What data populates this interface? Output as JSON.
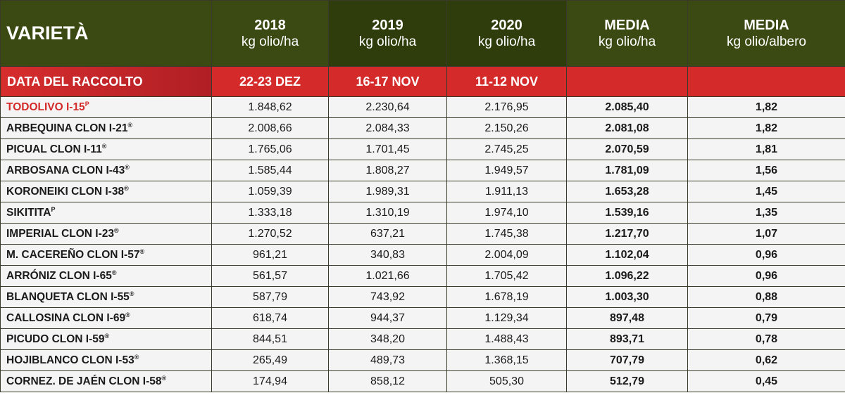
{
  "header": {
    "variety_label": "VARIETÀ",
    "columns": [
      {
        "year": "2018",
        "unit": "kg olio/ha"
      },
      {
        "year": "2019",
        "unit": "kg olio/ha"
      },
      {
        "year": "2020",
        "unit": "kg olio/ha"
      },
      {
        "year": "MEDIA",
        "unit": "kg olio/ha"
      },
      {
        "year": "MEDIA",
        "unit": "kg olio/albero"
      }
    ]
  },
  "harvest": {
    "label": "DATA DEL RACCOLTO",
    "dates": [
      "22-23 DEZ",
      "16-17 NOV",
      "11-12 NOV",
      "",
      ""
    ]
  },
  "rows": [
    {
      "name": "TODOLIVO I-15",
      "mark": "P",
      "highlight": true,
      "values": [
        "1.848,62",
        "2.230,64",
        "2.176,95",
        "2.085,40",
        "1,82"
      ]
    },
    {
      "name": "ARBEQUINA CLON I-21",
      "mark": "®",
      "values": [
        "2.008,66",
        "2.084,33",
        "2.150,26",
        "2.081,08",
        "1,82"
      ]
    },
    {
      "name": "PICUAL CLON I-11",
      "mark": "®",
      "values": [
        "1.765,06",
        "1.701,45",
        "2.745,25",
        "2.070,59",
        "1,81"
      ]
    },
    {
      "name": "ARBOSANA CLON I-43",
      "mark": "®",
      "values": [
        "1.585,44",
        "1.808,27",
        "1.949,57",
        "1.781,09",
        "1,56"
      ]
    },
    {
      "name": "KORONEIKI CLON I-38",
      "mark": "®",
      "values": [
        "1.059,39",
        "1.989,31",
        "1.911,13",
        "1.653,28",
        "1,45"
      ]
    },
    {
      "name": "SIKITITA",
      "mark": "P",
      "values": [
        "1.333,18",
        "1.310,19",
        "1.974,10",
        "1.539,16",
        "1,35"
      ]
    },
    {
      "name": "IMPERIAL CLON I-23",
      "mark": "®",
      "values": [
        "1.270,52",
        "637,21",
        "1.745,38",
        "1.217,70",
        "1,07"
      ]
    },
    {
      "name": "M. CACEREÑO CLON I-57",
      "mark": "®",
      "values": [
        "961,21",
        "340,83",
        "2.004,09",
        "1.102,04",
        "0,96"
      ]
    },
    {
      "name": "ARRÓNIZ CLON I-65",
      "mark": "®",
      "values": [
        "561,57",
        "1.021,66",
        "1.705,42",
        "1.096,22",
        "0,96"
      ]
    },
    {
      "name": "BLANQUETA CLON I-55",
      "mark": "®",
      "values": [
        "587,79",
        "743,92",
        "1.678,19",
        "1.003,30",
        "0,88"
      ]
    },
    {
      "name": "CALLOSINA CLON I-69",
      "mark": "®",
      "values": [
        "618,74",
        "944,37",
        "1.129,34",
        "897,48",
        "0,79"
      ]
    },
    {
      "name": "PICUDO CLON I-59",
      "mark": "®",
      "values": [
        "844,51",
        "348,20",
        "1.488,43",
        "893,71",
        "0,78"
      ]
    },
    {
      "name": "HOJIBLANCO CLON I-53",
      "mark": "®",
      "values": [
        "265,49",
        "489,73",
        "1.368,15",
        "707,79",
        "0,62"
      ]
    },
    {
      "name": "CORNEZ. DE JAÉN CLON I-58",
      "mark": "®",
      "values": [
        "174,94",
        "858,12",
        "505,30",
        "512,79",
        "0,45"
      ]
    }
  ],
  "colors": {
    "header_green": "#3b4a12",
    "accent_red": "#d42a2a",
    "row_bg": "#f4f4f4"
  }
}
